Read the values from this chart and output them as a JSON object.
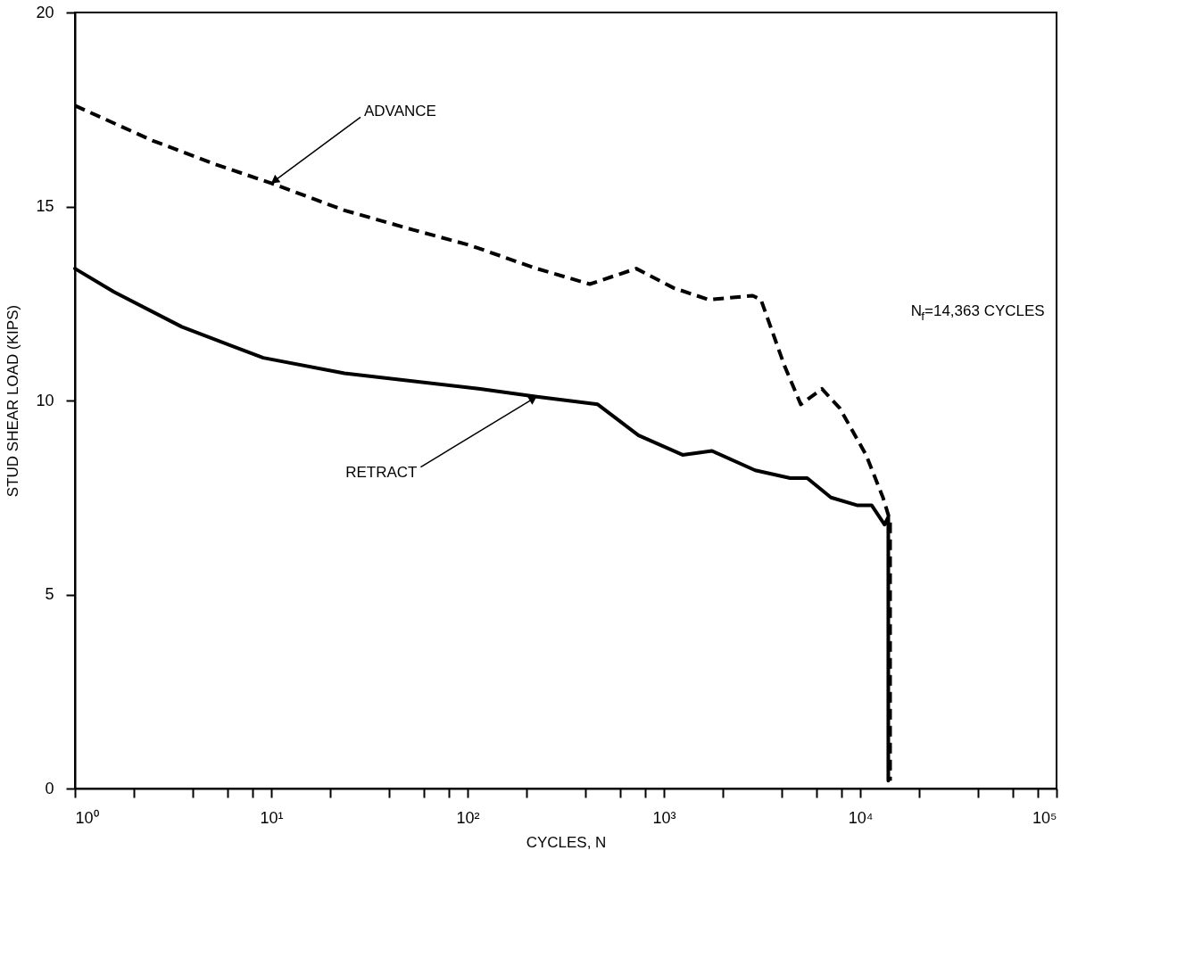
{
  "chart_data": {
    "type": "line",
    "xlabel": "CYCLES, N",
    "ylabel": "STUD SHEAR LOAD (KIPS)",
    "log": "x",
    "xlim": [
      1,
      100000
    ],
    "ylim": [
      0,
      20
    ],
    "xticks": [
      {
        "value": 1,
        "label": "10⁰"
      },
      {
        "value": 2,
        "label": null
      },
      {
        "value": 4,
        "label": null
      },
      {
        "value": 6,
        "label": null
      },
      {
        "value": 8,
        "label": null
      },
      {
        "value": 10,
        "label": "10¹"
      },
      {
        "value": 20,
        "label": null
      },
      {
        "value": 40,
        "label": null
      },
      {
        "value": 60,
        "label": null
      },
      {
        "value": 80,
        "label": null
      },
      {
        "value": 100,
        "label": "10²"
      },
      {
        "value": 200,
        "label": null
      },
      {
        "value": 400,
        "label": null
      },
      {
        "value": 600,
        "label": null
      },
      {
        "value": 800,
        "label": null
      },
      {
        "value": 1000,
        "label": "10³"
      },
      {
        "value": 2000,
        "label": null
      },
      {
        "value": 4000,
        "label": null
      },
      {
        "value": 6000,
        "label": null
      },
      {
        "value": 8000,
        "label": null
      },
      {
        "value": 10000,
        "label": "10⁴"
      },
      {
        "value": 20000,
        "label": null
      },
      {
        "value": 40000,
        "label": null
      },
      {
        "value": 60000,
        "label": null
      },
      {
        "value": 80000,
        "label": null
      },
      {
        "value": 100000,
        "label": "10⁵"
      }
    ],
    "yticks": [
      0,
      5,
      10,
      15,
      20
    ],
    "grid": false,
    "series": [
      {
        "color": "#000000",
        "line_style": "dashed",
        "x": [
          1,
          2.48,
          5.1,
          10,
          23.6,
          52.7,
          103,
          225,
          419,
          723,
          1122,
          1690,
          2833,
          3120,
          4110,
          4980,
          6380,
          7870,
          10700,
          13060,
          14200,
          14200
        ],
        "values": [
          17.6,
          16.7,
          16.1,
          15.6,
          14.9,
          14.4,
          14.0,
          13.4,
          13.0,
          13.4,
          12.9,
          12.6,
          12.7,
          12.6,
          10.9,
          9.9,
          10.3,
          9.8,
          8.6,
          7.5,
          6.9,
          0.2
        ]
      },
      {
        "color": "#000000",
        "line_style": "solid",
        "x": [
          1,
          1.58,
          3.5,
          9.1,
          23.6,
          116,
          225,
          460,
          743,
          1245,
          1758,
          2917,
          4397,
          5370,
          7096,
          9620,
          11430,
          13300,
          13900,
          13900
        ],
        "values": [
          13.4,
          12.8,
          11.9,
          11.1,
          10.7,
          10.3,
          10.1,
          9.9,
          9.1,
          8.6,
          8.7,
          8.2,
          8.0,
          8.0,
          7.5,
          7.3,
          7.3,
          6.8,
          7.0,
          0.2
        ]
      }
    ],
    "annotations": [
      {
        "text": "ADVANCE",
        "x": 10,
        "y": 15.6
      },
      {
        "text": "RETRACT",
        "x": 225,
        "y": 10.1
      },
      "N$_{f}$=14,363 CYCLES"
    ]
  }
}
